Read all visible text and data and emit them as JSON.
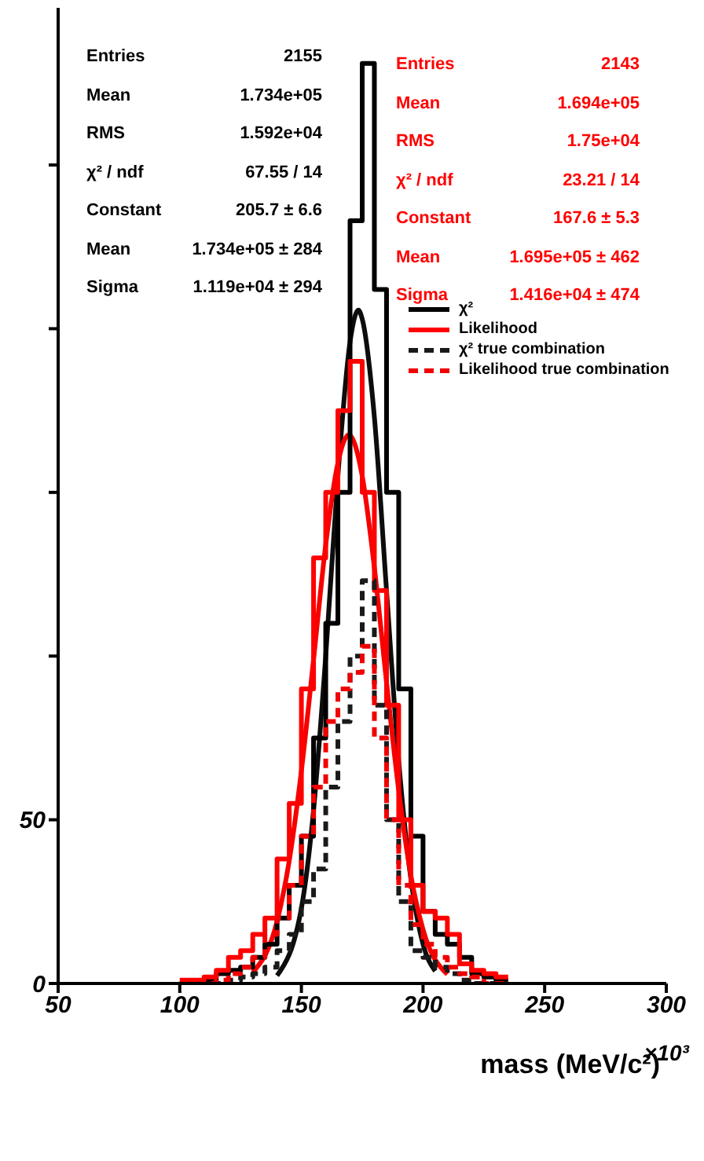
{
  "chart_data": {
    "type": "histogram",
    "xlabel": "mass (MeV/c²)",
    "xlim": [
      50,
      300
    ],
    "xticks": [
      50,
      100,
      150,
      200,
      250,
      300
    ],
    "ylim": [
      0,
      298
    ],
    "yticks": [
      0,
      50,
      {
        "value": 100,
        "label": null
      },
      {
        "value": 150,
        "label": null
      },
      {
        "value": 200,
        "label": null
      },
      {
        "value": 250,
        "label": null
      }
    ],
    "bins": [
      100,
      105,
      110,
      115,
      120,
      125,
      130,
      135,
      140,
      145,
      150,
      155,
      160,
      165,
      170,
      175,
      180,
      185,
      190,
      195,
      200,
      205,
      210,
      215,
      220,
      225,
      230,
      235
    ],
    "series": [
      {
        "name": "χ²",
        "color": "#000000",
        "line_style": "solid",
        "values": [
          0,
          0,
          1,
          3,
          4,
          5,
          8,
          12,
          20,
          30,
          45,
          75,
          110,
          150,
          233,
          281,
          212,
          150,
          90,
          45,
          22,
          15,
          12,
          8,
          3,
          2,
          1
        ]
      },
      {
        "name": "Likelihood",
        "color": "#ff0000",
        "line_style": "solid",
        "values": [
          1,
          1,
          2,
          4,
          8,
          10,
          15,
          20,
          38,
          55,
          90,
          130,
          150,
          175,
          190,
          150,
          120,
          85,
          50,
          30,
          22,
          20,
          15,
          6,
          4,
          3,
          2
        ]
      },
      {
        "name": "χ² true combination",
        "color": "#1a1a1a",
        "line_style": "dashed",
        "values": [
          0,
          0,
          0,
          0,
          1,
          2,
          3,
          5,
          10,
          15,
          25,
          35,
          60,
          80,
          100,
          123,
          85,
          50,
          25,
          10,
          8,
          5,
          3,
          1,
          0,
          0,
          0
        ]
      },
      {
        "name": "Likelihood true combination",
        "color": "#f00000",
        "line_style": "dashed",
        "values": [
          0,
          0,
          0,
          1,
          3,
          5,
          8,
          15,
          20,
          30,
          45,
          60,
          80,
          90,
          95,
          103,
          75,
          50,
          30,
          18,
          12,
          8,
          5,
          3,
          2,
          0,
          0
        ]
      },
      {
        "type": "line",
        "color": "#0d0d0d",
        "line_style": "solid",
        "x": [
          140,
          150,
          155,
          160,
          165,
          170,
          173.4,
          175,
          180,
          185,
          190,
          195,
          200,
          205
        ],
        "values": [
          2.4,
          23,
          53,
          100,
          155,
          196,
          205.7,
          203,
          173,
          120,
          68,
          32,
          12,
          3.8
        ]
      },
      {
        "type": "line",
        "color": "#f80000",
        "line_style": "solid",
        "x": [
          130,
          140,
          145,
          150,
          155,
          160,
          165,
          169.5,
          175,
          180,
          185,
          190,
          195,
          200,
          210
        ],
        "values": [
          3.4,
          19,
          37.5,
          65,
          99,
          134,
          159,
          167.6,
          155,
          127,
          92,
          59,
          33,
          16.5,
          2.8
        ]
      }
    ],
    "legend": "right",
    "grid": false,
    "annotations": [
      "Entries",
      "2155",
      "Mean",
      "1.734e+05",
      "RMS",
      "1.592e+04",
      "χ² / ndf",
      "67.55 / 14",
      "Constant",
      "205.7 ± 6.6",
      "Mean",
      "1.734e+05 ± 284",
      "Sigma",
      "1.119e+04 ± 294",
      "Entries",
      "2143",
      "Mean",
      "1.694e+05",
      "RMS",
      "1.75e+04",
      "χ² / ndf",
      "23.21 / 14",
      "Constant",
      "167.6 ± 5.3",
      "Mean",
      "1.695e+05 ± 462",
      "Sigma",
      "1.416e+04 ± 474",
      "×10³"
    ]
  }
}
